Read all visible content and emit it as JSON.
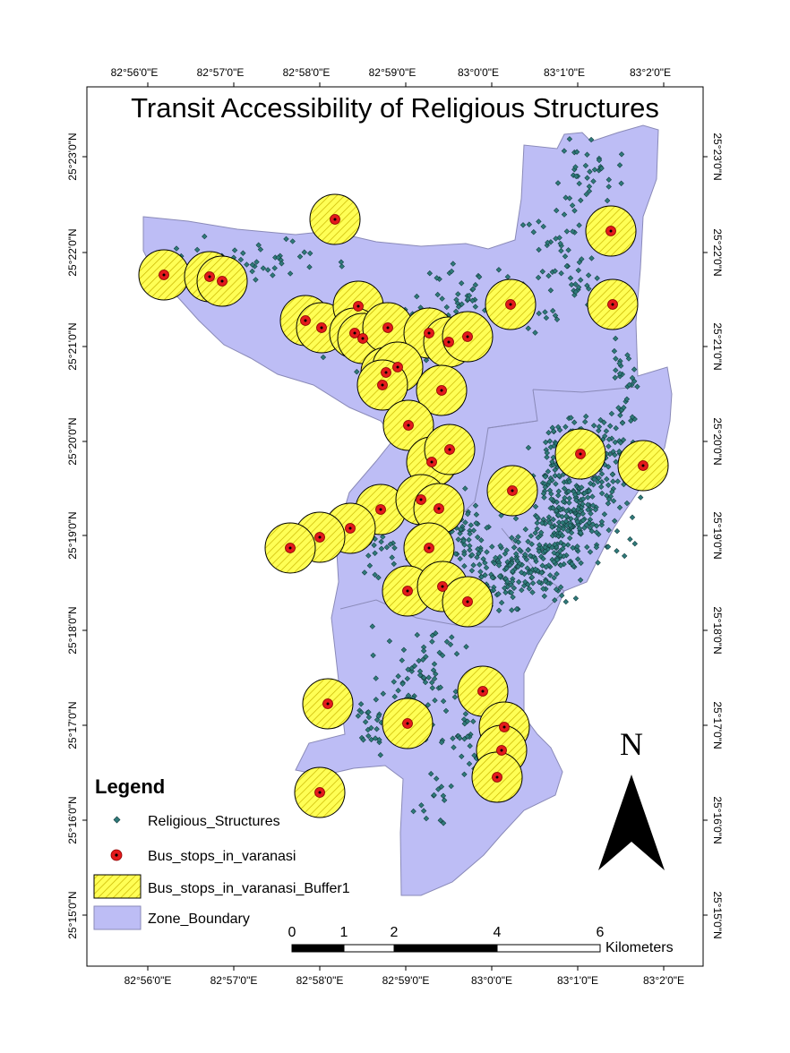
{
  "title": "Transit Accessibility of Religious Structures",
  "graticule": {
    "top": [
      "82°56'0\"E",
      "82°57'0\"E",
      "82°58'0\"E",
      "82°59'0\"E",
      "83°0'0\"E",
      "83°1'0\"E",
      "83°2'0\"E"
    ],
    "bottom": [
      "82°56'0\"E",
      "82°57'0\"E",
      "82°58'0\"E",
      "82°59'0\"E",
      "83°0'0\"E",
      "83°1'0\"E",
      "83°2'0\"E"
    ],
    "left": [
      "25°23'0\"N",
      "25°22'0\"N",
      "25°21'0\"N",
      "25°20'0\"N",
      "25°19'0\"N",
      "25°18'0\"N",
      "25°17'0\"N",
      "25°16'0\"N",
      "25°15'0\"N"
    ],
    "right": [
      "25°23'0\"N",
      "25°22'0\"N",
      "25°21'0\"N",
      "25°20'0\"N",
      "25°19'0\"N",
      "25°18'0\"N",
      "25°17'0\"N",
      "25°16'0\"N",
      "25°15'0\"N"
    ]
  },
  "legend": {
    "title": "Legend",
    "items": [
      {
        "label": "Religious_Structures",
        "symbol": "small-diamond-point"
      },
      {
        "label": "Bus_stops_in_varanasi",
        "symbol": "red-circle-point"
      },
      {
        "label": "Bus_stops_in_varanasi_Buffer1",
        "symbol": "yellow-hatched-fill"
      },
      {
        "label": "Zone_Boundary",
        "symbol": "lavender-fill"
      }
    ]
  },
  "scale_bar": {
    "labels": [
      "0",
      "1",
      "2",
      "4",
      "6"
    ],
    "unit": "Kilometers"
  },
  "north_arrow": {
    "label": "N"
  },
  "colors": {
    "zone_fill": "#bdbdf5",
    "zone_stroke": "#8a8ab8",
    "buffer_fill": "#ffff55",
    "buffer_hatch": "#c8b400",
    "bus_stop": "#e31a1c",
    "religious": "#2f7a7a"
  }
}
